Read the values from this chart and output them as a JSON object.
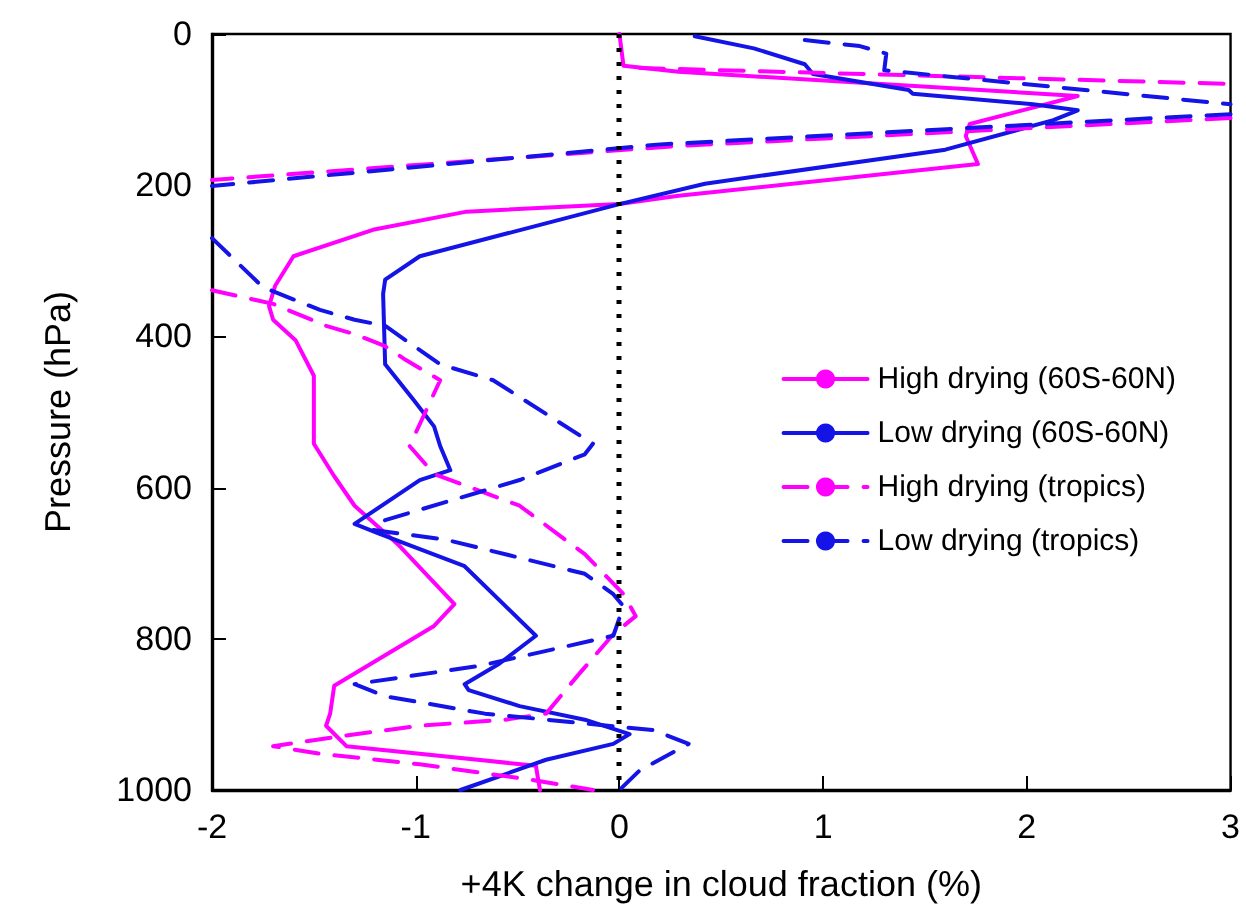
{
  "chart_data": {
    "type": "line",
    "xlabel": "+4K change in cloud fraction (%)",
    "ylabel": "Pressure (hPa)",
    "xlim": [
      -2,
      3
    ],
    "xticks": [
      -2,
      -1,
      0,
      1,
      2,
      3
    ],
    "ylim": [
      1000,
      0
    ],
    "yticks": [
      0,
      200,
      400,
      600,
      800,
      1000
    ],
    "grid": false,
    "legend": "right",
    "marker": "none",
    "ref_lines": [
      {
        "axis": "x",
        "value": 0,
        "color": "#000000",
        "line_style": "dotted"
      }
    ],
    "series": [
      {
        "name": "High drying (60S-60N)",
        "color": "#ff00ff",
        "line_style": "solid",
        "x": [
          0,
          0.02,
          0.29,
          2.25,
          1.72,
          1.7,
          1.76,
          0.29,
          0,
          -0.75,
          -1.21,
          -1.6,
          -1.69,
          -1.72,
          -1.7,
          -1.59,
          -1.5,
          -1.5,
          -1.4,
          -1.3,
          -1.08,
          -0.81,
          -0.91,
          -1.4,
          -1.42,
          -1.44,
          -1.34,
          -0.41,
          -0.39
        ],
        "values": [
          0,
          42,
          50,
          82,
          119,
          135,
          172,
          214,
          225,
          235,
          259,
          294,
          333,
          360,
          378,
          405,
          452,
          542,
          585,
          624,
          677,
          754,
          783,
          862,
          899,
          915,
          942,
          968,
          1000
        ]
      },
      {
        "name": "Low drying (60S-60N)",
        "color": "#1414e6",
        "line_style": "solid",
        "x": [
          0.37,
          0.66,
          0.91,
          0.95,
          1.42,
          1.44,
          2.03,
          2.25,
          2.13,
          1.6,
          0.42,
          0,
          -0.98,
          -1.15,
          -1.16,
          -1.15,
          -1.01,
          -0.91,
          -0.88,
          -0.83,
          -0.98,
          -1.3,
          -1.18,
          -0.76,
          -0.41,
          -0.59,
          -0.76,
          -0.74,
          -0.49,
          -0.17,
          0.05,
          -0.03,
          -0.36,
          -0.78
        ],
        "values": [
          3,
          19,
          40,
          53,
          74,
          79,
          93,
          101,
          114,
          153,
          198,
          225,
          294,
          325,
          344,
          437,
          484,
          519,
          545,
          577,
          590,
          648,
          661,
          704,
          796,
          833,
          860,
          868,
          889,
          907,
          926,
          939,
          960,
          1000
        ]
      },
      {
        "name": "High drying (tropics)",
        "color": "#ff00ff",
        "line_style": "dashed",
        "x": [
          0.1,
          3,
          null,
          3,
          0.29,
          -2,
          null,
          -2,
          -1.7,
          -1.44,
          -1.3,
          -1.15,
          -1.05,
          -0.88,
          -1.03,
          -0.91,
          -0.49,
          -0.17,
          0.02,
          0.08,
          -0.03,
          -0.2,
          -0.36,
          -0.56,
          -0.98,
          -1.37,
          -1.7,
          -1.47,
          -0.98,
          -0.42,
          -0.13
        ],
        "values": [
          45,
          66,
          null,
          111,
          148,
          193,
          null,
          339,
          357,
          386,
          397,
          413,
          431,
          458,
          545,
          582,
          624,
          688,
          741,
          770,
          794,
          847,
          899,
          907,
          915,
          929,
          942,
          952,
          966,
          987,
          1000
        ]
      },
      {
        "name": "Low drying (tropics)",
        "color": "#1414e6",
        "line_style": "dashed",
        "x": [
          0.91,
          1.18,
          1.31,
          1.3,
          3,
          null,
          3,
          0.2,
          -2,
          null,
          -2,
          -1.75,
          -1.47,
          -1.3,
          -1.15,
          -1.05,
          -0.88,
          -0.62,
          -0.13,
          -0.17,
          -0.49,
          -1.15,
          -1.21,
          -0.85,
          -0.17,
          -0.03,
          0.02,
          -0.03,
          -0.69,
          -1.3,
          -1.15,
          -0.66,
          0.17,
          0.34,
          0.1,
          0
        ],
        "values": [
          8,
          16,
          26,
          48,
          93,
          null,
          106,
          146,
          201,
          null,
          270,
          335,
          365,
          378,
          386,
          405,
          437,
          458,
          542,
          556,
          590,
          643,
          656,
          669,
          714,
          741,
          757,
          796,
          836,
          860,
          876,
          899,
          921,
          939,
          974,
          1000
        ]
      }
    ]
  }
}
